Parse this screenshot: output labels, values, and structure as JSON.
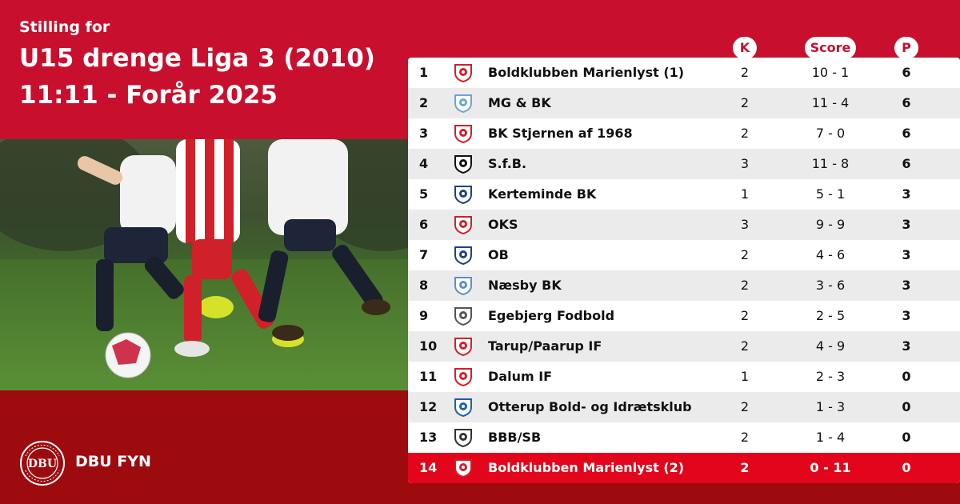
{
  "header": {
    "subtitle": "Stilling for",
    "title_line1": "U15 drenge Liga 3 (2010)",
    "title_line2": "11:11 - Forår 2025"
  },
  "columns": {
    "k": "K",
    "score": "Score",
    "p": "P"
  },
  "brand": {
    "name": "DBU FYN",
    "logo_text": "DBU"
  },
  "colors": {
    "primary_red": "#c8102e",
    "dark_red": "#9e0b0f",
    "highlight_red": "#e3051b"
  },
  "standings": [
    {
      "pos": "1",
      "team": "Boldklubben Marienlyst (1)",
      "k": "2",
      "score": "10 - 1",
      "p": "6",
      "logo": "marienlyst-crest",
      "logo_color": "#d0202a"
    },
    {
      "pos": "2",
      "team": "MG & BK",
      "k": "2",
      "score": "11 - 4",
      "p": "6",
      "logo": "mgbk-crest",
      "logo_color": "#6aa6d8"
    },
    {
      "pos": "3",
      "team": "BK Stjernen af 1968",
      "k": "2",
      "score": "7 - 0",
      "p": "6",
      "logo": "stjernen-crest",
      "logo_color": "#d0202a"
    },
    {
      "pos": "4",
      "team": "S.f.B.",
      "k": "3",
      "score": "11 - 8",
      "p": "6",
      "logo": "sfb-crest",
      "logo_color": "#111111"
    },
    {
      "pos": "5",
      "team": "Kerteminde BK",
      "k": "1",
      "score": "5 - 1",
      "p": "3",
      "logo": "kerteminde-crest",
      "logo_color": "#1d3f8f"
    },
    {
      "pos": "6",
      "team": "OKS",
      "k": "3",
      "score": "9 - 9",
      "p": "3",
      "logo": "oks-crest",
      "logo_color": "#d0202a"
    },
    {
      "pos": "7",
      "team": "OB",
      "k": "2",
      "score": "4 - 6",
      "p": "3",
      "logo": "ob-crest",
      "logo_color": "#1d3f8f"
    },
    {
      "pos": "8",
      "team": "Næsby BK",
      "k": "2",
      "score": "3 - 6",
      "p": "3",
      "logo": "naesby-crest",
      "logo_color": "#5c8fc8"
    },
    {
      "pos": "9",
      "team": "Egebjerg Fodbold",
      "k": "2",
      "score": "2 - 5",
      "p": "3",
      "logo": "egebjerg-crest",
      "logo_color": "#555555"
    },
    {
      "pos": "10",
      "team": "Tarup/Paarup IF",
      "k": "2",
      "score": "4 - 9",
      "p": "3",
      "logo": "tarup-crest",
      "logo_color": "#d0202a"
    },
    {
      "pos": "11",
      "team": "Dalum IF",
      "k": "1",
      "score": "2 - 3",
      "p": "0",
      "logo": "dalum-crest",
      "logo_color": "#d0202a"
    },
    {
      "pos": "12",
      "team": "Otterup Bold- og Idrætsklub",
      "k": "2",
      "score": "1 - 3",
      "p": "0",
      "logo": "otterup-crest",
      "logo_color": "#1d5fb0"
    },
    {
      "pos": "13",
      "team": "BBB/SB",
      "k": "2",
      "score": "1 - 4",
      "p": "0",
      "logo": "bbbsb-crest",
      "logo_color": "#333333"
    },
    {
      "pos": "14",
      "team": "Boldklubben Marienlyst (2)",
      "k": "2",
      "score": "0 - 11",
      "p": "0",
      "logo": "marienlyst-crest",
      "logo_color": "#d0202a"
    }
  ]
}
